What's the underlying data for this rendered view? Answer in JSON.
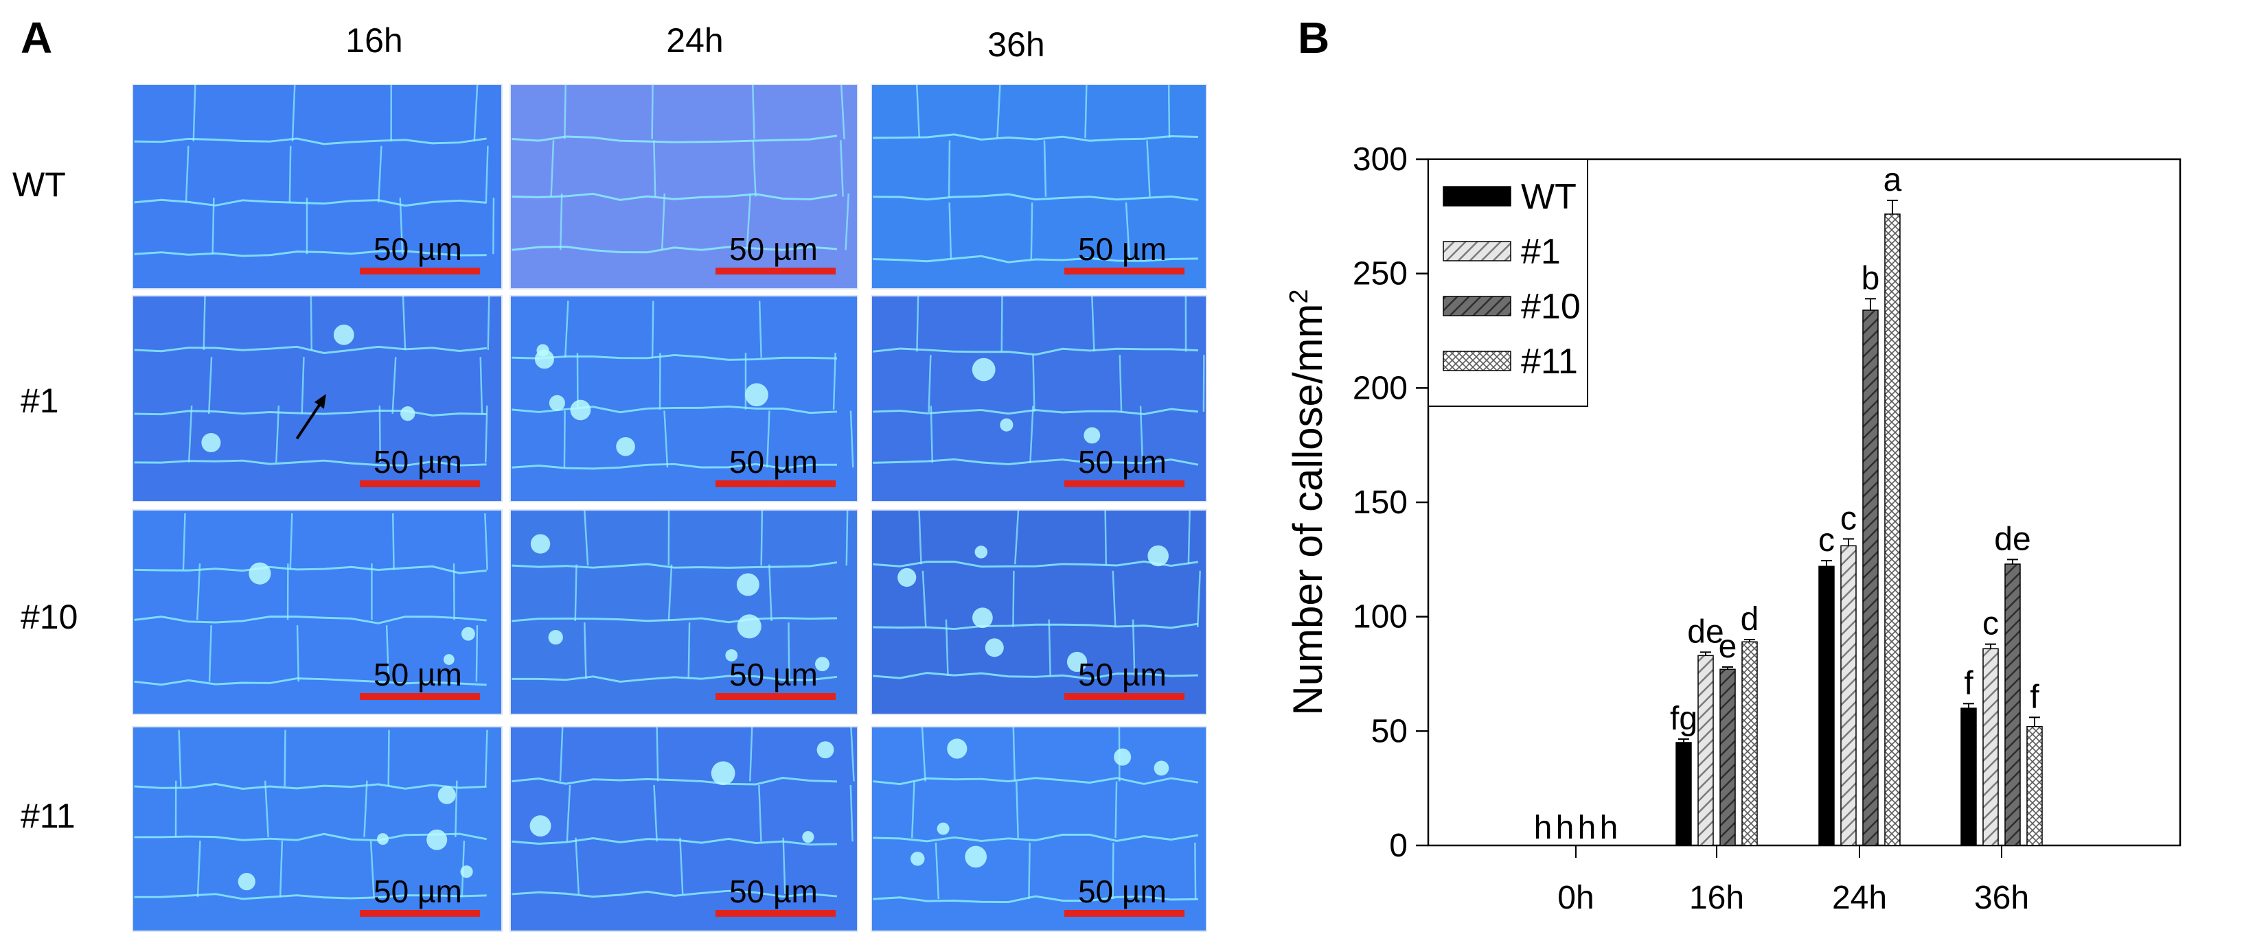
{
  "panel_a": {
    "letter": "A",
    "columns": [
      "16h",
      "24h",
      "36h"
    ],
    "rows": [
      "WT",
      "#1",
      "#10",
      "#11"
    ],
    "scale_label": "50 µm",
    "image_tint": "#3a78f0",
    "wall_color": "#8ff2ff",
    "scalebar_color": "#e3231b"
  },
  "panel_b": {
    "letter": "B"
  },
  "chart_data": {
    "type": "bar",
    "title": "",
    "xlabel": "",
    "ylabel": "Number of callose/mm",
    "ylabel_superscript": "2",
    "categories": [
      "0h",
      "16h",
      "24h",
      "36h"
    ],
    "ylim": [
      0,
      300
    ],
    "yticks": [
      0,
      50,
      100,
      150,
      200,
      250,
      300
    ],
    "legend_position": "top-left",
    "series": [
      {
        "name": "WT",
        "values": [
          0,
          45,
          122,
          60
        ],
        "errors": [
          0,
          1.5,
          2.5,
          2
        ],
        "letters": [
          "h",
          "fg",
          "c",
          "f"
        ],
        "fill": "#000000",
        "pattern": "solid"
      },
      {
        "name": "#1",
        "values": [
          0,
          83,
          131,
          86
        ],
        "errors": [
          0,
          1.5,
          3,
          2
        ],
        "letters": [
          "h",
          "de",
          "c",
          "c"
        ],
        "fill": "#d6d6d6",
        "pattern": "diagonal"
      },
      {
        "name": "#10",
        "values": [
          0,
          77,
          234,
          123
        ],
        "errors": [
          0,
          1,
          5,
          2
        ],
        "letters": [
          "h",
          "e",
          "b",
          "de"
        ],
        "fill": "#595959",
        "pattern": "dark-diagonal"
      },
      {
        "name": "#11",
        "values": [
          0,
          89,
          276,
          52
        ],
        "errors": [
          0,
          1,
          6,
          4
        ],
        "letters": [
          "h",
          "d",
          "a",
          "f"
        ],
        "fill": "#ffffff",
        "pattern": "crosshatch"
      }
    ]
  }
}
